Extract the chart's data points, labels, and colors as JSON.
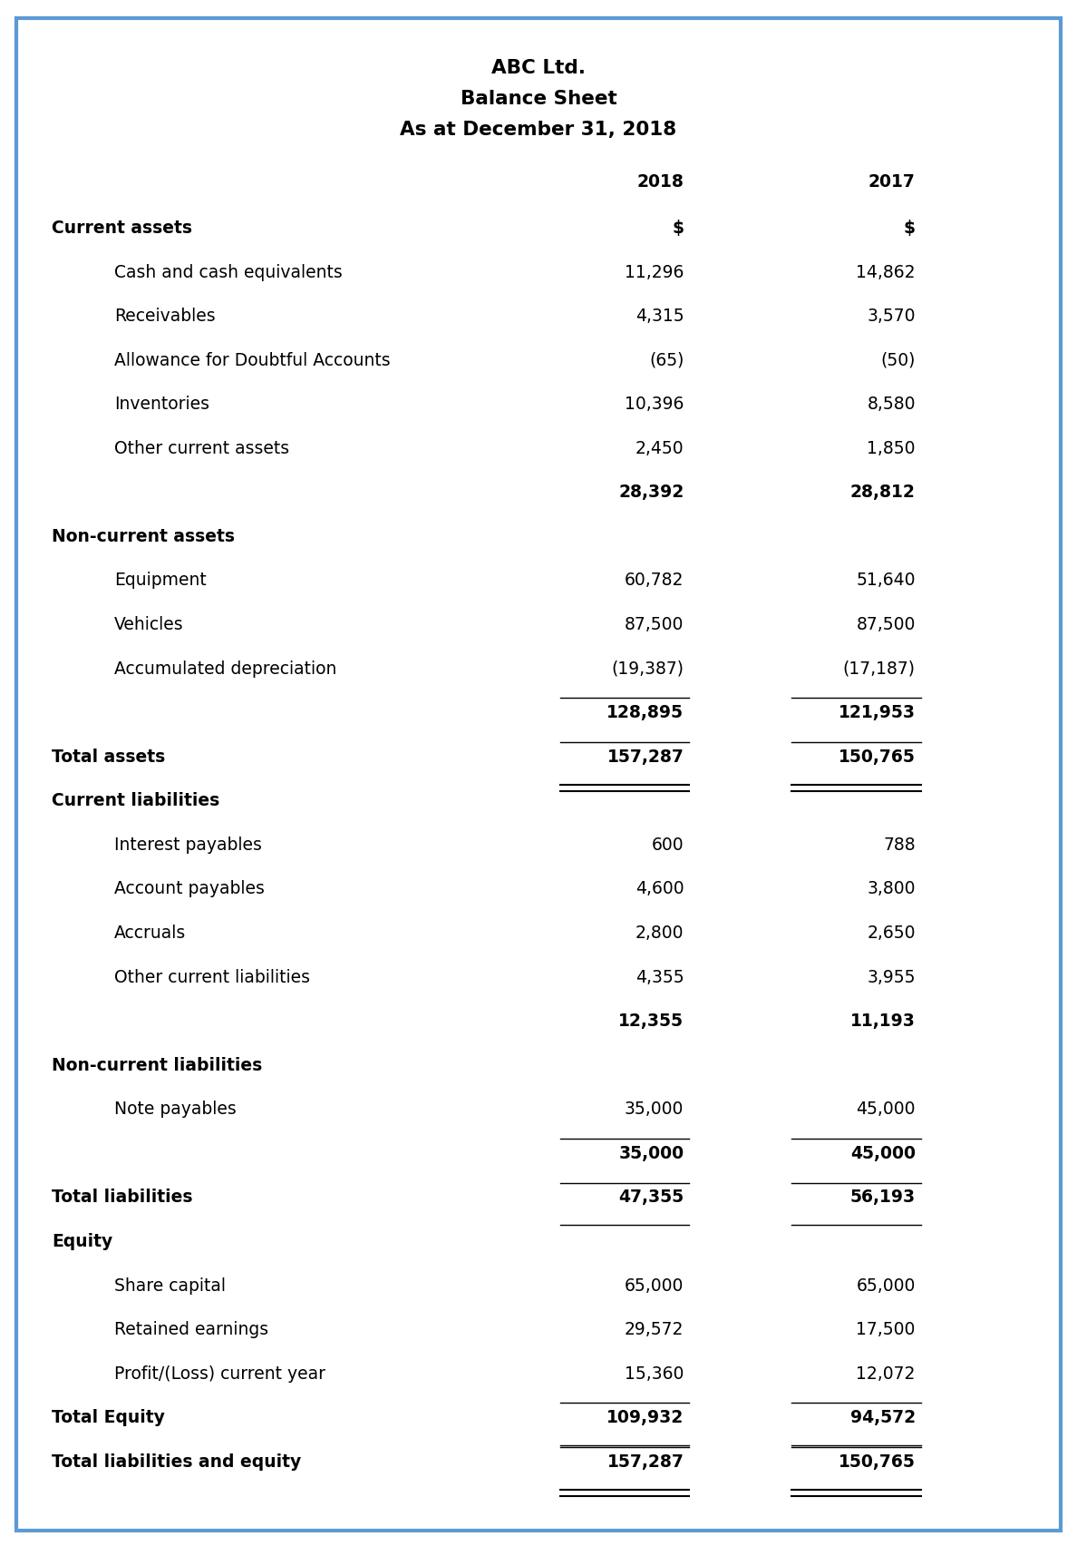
{
  "title_line1": "ABC Ltd.",
  "title_line2": "Balance Sheet",
  "title_line3": "As at December 31, 2018",
  "col_headers": [
    "2018",
    "2017"
  ],
  "rows": [
    {
      "label": "Current assets",
      "val2018": "$",
      "val2017": "$",
      "style": "bold_header_dollar",
      "indent": 0
    },
    {
      "label": "Cash and cash equivalents",
      "val2018": "11,296",
      "val2017": "14,862",
      "style": "normal",
      "indent": 1
    },
    {
      "label": "Receivables",
      "val2018": "4,315",
      "val2017": "3,570",
      "style": "normal",
      "indent": 1
    },
    {
      "label": "Allowance for Doubtful Accounts",
      "val2018": "(65)",
      "val2017": "(50)",
      "style": "normal",
      "indent": 1
    },
    {
      "label": "Inventories",
      "val2018": "10,396",
      "val2017": "8,580",
      "style": "normal",
      "indent": 1
    },
    {
      "label": "Other current assets",
      "val2018": "2,450",
      "val2017": "1,850",
      "style": "normal",
      "indent": 1
    },
    {
      "label": "",
      "val2018": "28,392",
      "val2017": "28,812",
      "style": "subtotal",
      "indent": 1
    },
    {
      "label": "Non-current assets",
      "val2018": "",
      "val2017": "",
      "style": "bold_header",
      "indent": 0
    },
    {
      "label": "Equipment",
      "val2018": "60,782",
      "val2017": "51,640",
      "style": "normal",
      "indent": 1
    },
    {
      "label": "Vehicles",
      "val2018": "87,500",
      "val2017": "87,500",
      "style": "normal",
      "indent": 1
    },
    {
      "label": "Accumulated depreciation",
      "val2018": "(19,387)",
      "val2017": "(17,187)",
      "style": "normal",
      "indent": 1
    },
    {
      "label": "",
      "val2018": "128,895",
      "val2017": "121,953",
      "style": "subtotal_line",
      "indent": 1
    },
    {
      "label": "Total assets",
      "val2018": "157,287",
      "val2017": "150,765",
      "style": "total_double",
      "indent": 0
    },
    {
      "label": "Current liabilities",
      "val2018": "",
      "val2017": "",
      "style": "bold_header",
      "indent": 0
    },
    {
      "label": "Interest payables",
      "val2018": "600",
      "val2017": "788",
      "style": "normal",
      "indent": 1
    },
    {
      "label": "Account payables",
      "val2018": "4,600",
      "val2017": "3,800",
      "style": "normal",
      "indent": 1
    },
    {
      "label": "Accruals",
      "val2018": "2,800",
      "val2017": "2,650",
      "style": "normal",
      "indent": 1
    },
    {
      "label": "Other current liabilities",
      "val2018": "4,355",
      "val2017": "3,955",
      "style": "normal",
      "indent": 1
    },
    {
      "label": "",
      "val2018": "12,355",
      "val2017": "11,193",
      "style": "subtotal",
      "indent": 1
    },
    {
      "label": "Non-current liabilities",
      "val2018": "",
      "val2017": "",
      "style": "bold_header",
      "indent": 0
    },
    {
      "label": "Note payables",
      "val2018": "35,000",
      "val2017": "45,000",
      "style": "normal",
      "indent": 1
    },
    {
      "label": "",
      "val2018": "35,000",
      "val2017": "45,000",
      "style": "subtotal_line",
      "indent": 1
    },
    {
      "label": "Total liabilities",
      "val2018": "47,355",
      "val2017": "56,193",
      "style": "total_single",
      "indent": 0
    },
    {
      "label": "Equity",
      "val2018": "",
      "val2017": "",
      "style": "bold_header",
      "indent": 0
    },
    {
      "label": "Share capital",
      "val2018": "65,000",
      "val2017": "65,000",
      "style": "normal",
      "indent": 1
    },
    {
      "label": "Retained earnings",
      "val2018": "29,572",
      "val2017": "17,500",
      "style": "normal",
      "indent": 1
    },
    {
      "label": "Profit/(Loss) current year",
      "val2018": "15,360",
      "val2017": "12,072",
      "style": "normal",
      "indent": 1
    },
    {
      "label": "Total Equity",
      "val2018": "109,932",
      "val2017": "94,572",
      "style": "total_single",
      "indent": 0
    },
    {
      "label": "Total liabilities and equity",
      "val2018": "157,287",
      "val2017": "150,765",
      "style": "total_double",
      "indent": 0
    }
  ],
  "border_color": "#5B9BD5",
  "text_color": "#000000",
  "background_color": "#FFFFFF",
  "font_size": 13.5,
  "title_font_size": 15.5
}
